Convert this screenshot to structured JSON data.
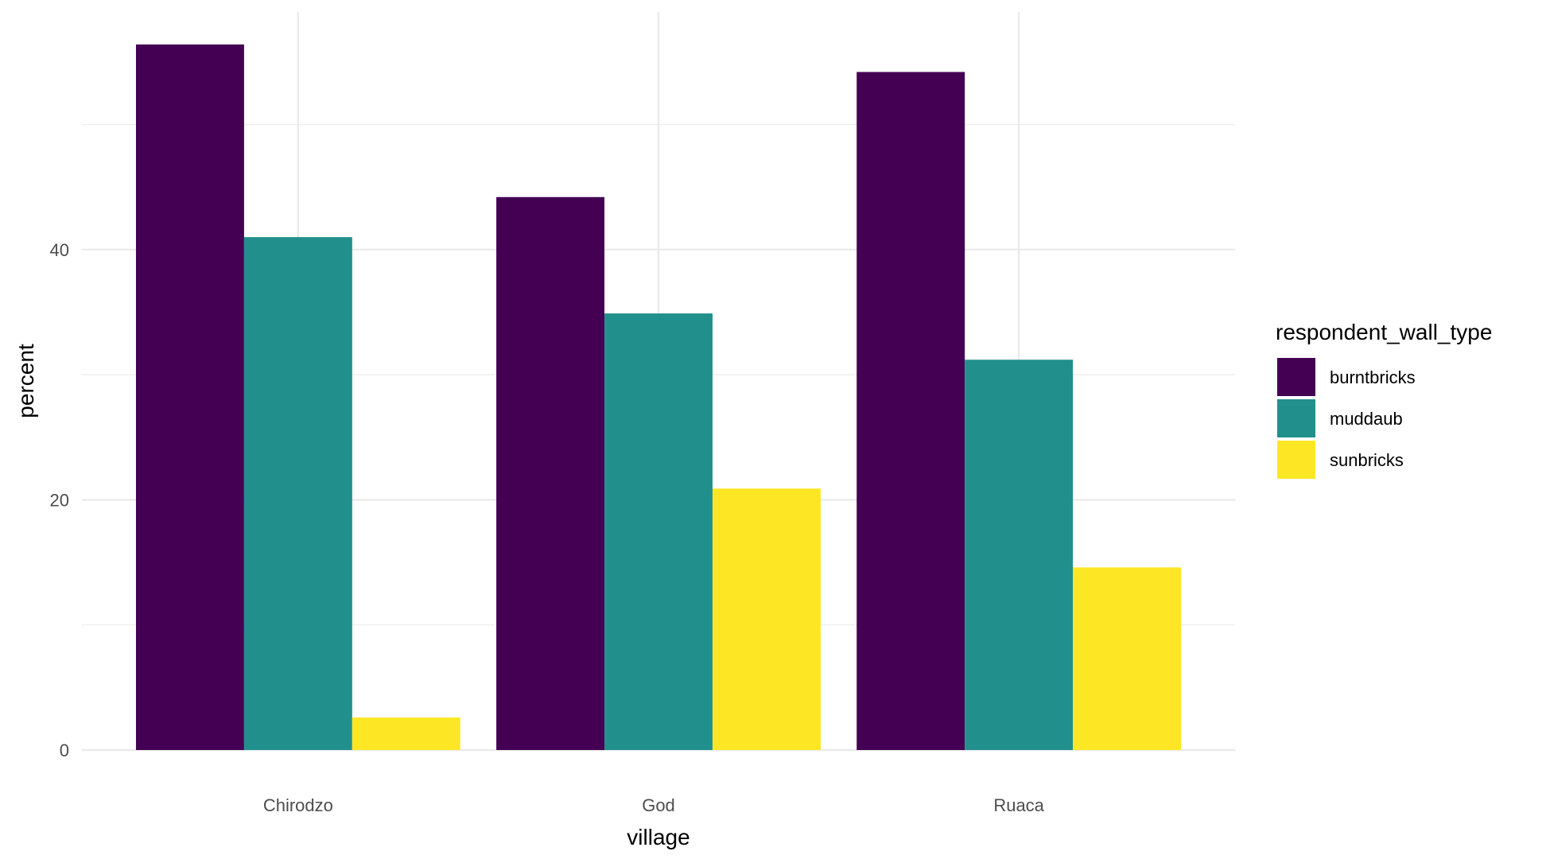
{
  "chart_data": {
    "type": "bar",
    "xlabel": "village",
    "ylabel": "percent",
    "categories": [
      "Chirodzo",
      "God",
      "Ruaca"
    ],
    "series": [
      {
        "name": "burntbricks",
        "color": "#440154",
        "values": [
          56.4,
          44.2,
          54.2
        ]
      },
      {
        "name": "muddaub",
        "color": "#21908C",
        "values": [
          41.0,
          34.9,
          31.2
        ]
      },
      {
        "name": "sunbricks",
        "color": "#FDE725",
        "values": [
          2.6,
          20.9,
          14.6
        ]
      }
    ],
    "ylim": [
      0,
      59
    ],
    "y_ticks": [
      0,
      20,
      40
    ],
    "y_minor_ticks": [
      10,
      30,
      50
    ],
    "grid": true,
    "legend": {
      "title": "respondent_wall_type",
      "position": "right"
    }
  }
}
